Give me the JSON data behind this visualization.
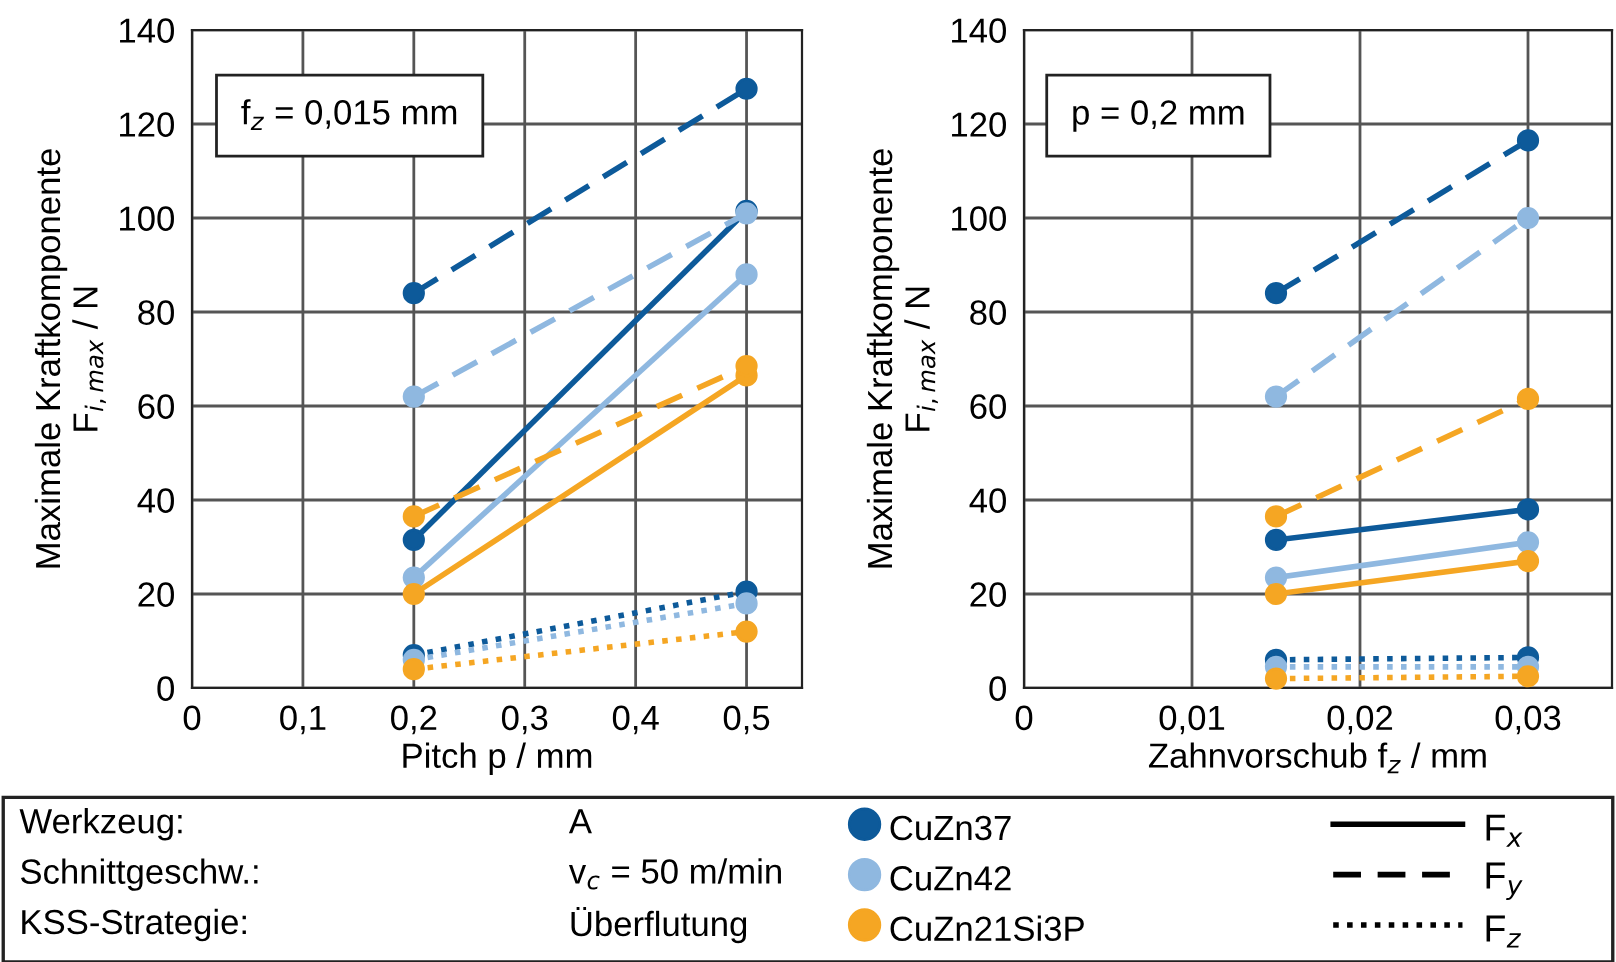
{
  "chart_data": [
    {
      "type": "line",
      "xlabel": "Pitch p / mm",
      "ylabel": "Maximale Kraftkomponente\nF$_{i,max}$ / N",
      "annotations": [
        "f$_{z}$ = 0,015 mm"
      ],
      "xlim": [
        0,
        0.55
      ],
      "ylim": [
        0,
        140
      ],
      "xticks": [
        0,
        {
          "value": 0.1,
          "label": "0,1"
        },
        {
          "value": 0.2,
          "label": "0,2"
        },
        {
          "value": 0.3,
          "label": "0,3"
        },
        {
          "value": 0.4,
          "label": "0,4"
        },
        {
          "value": 0.5,
          "label": "0,5"
        }
      ],
      "yticks": [
        0,
        20,
        40,
        60,
        80,
        100,
        120,
        140
      ],
      "grid": true,
      "marker": "circle",
      "x": [
        0.2,
        0.5
      ],
      "series": [
        {
          "color": "#0d5a9a",
          "line_style": "solid",
          "values": [
            31.5,
            101.5
          ]
        },
        {
          "color": "#0d5a9a",
          "line_style": "dashed",
          "values": [
            84,
            127.5
          ]
        },
        {
          "color": "#0d5a9a",
          "line_style": "dotted",
          "values": [
            7,
            20.5
          ]
        },
        {
          "color": "#8fb8e0",
          "line_style": "solid",
          "values": [
            23.5,
            88
          ]
        },
        {
          "color": "#8fb8e0",
          "line_style": "dashed",
          "values": [
            62,
            101
          ]
        },
        {
          "color": "#8fb8e0",
          "line_style": "dotted",
          "values": [
            6,
            18
          ]
        },
        {
          "color": "#f5a623",
          "line_style": "solid",
          "values": [
            20,
            66.5
          ]
        },
        {
          "color": "#f5a623",
          "line_style": "dashed",
          "values": [
            36.5,
            68.5
          ]
        },
        {
          "color": "#f5a623",
          "line_style": "dotted",
          "values": [
            4,
            12
          ]
        }
      ]
    },
    {
      "type": "line",
      "xlabel": "Zahnvorschub f$_{z}$ / mm",
      "ylabel": "Maximale Kraftkomponente\nF$_{i,max}$ / N",
      "annotations": [
        "p = 0,2 mm"
      ],
      "xlim": [
        0,
        0.035
      ],
      "ylim": [
        0,
        140
      ],
      "xticks": [
        0,
        {
          "value": 0.01,
          "label": "0,01"
        },
        {
          "value": 0.02,
          "label": "0,02"
        },
        {
          "value": 0.03,
          "label": "0,03"
        }
      ],
      "yticks": [
        0,
        20,
        40,
        60,
        80,
        100,
        120,
        140
      ],
      "grid": true,
      "marker": "circle",
      "x": [
        0.015,
        0.03
      ],
      "series": [
        {
          "color": "#0d5a9a",
          "line_style": "solid",
          "values": [
            31.5,
            38
          ]
        },
        {
          "color": "#0d5a9a",
          "line_style": "dashed",
          "values": [
            84,
            116.5
          ]
        },
        {
          "color": "#0d5a9a",
          "line_style": "dotted",
          "values": [
            6,
            6.5
          ]
        },
        {
          "color": "#8fb8e0",
          "line_style": "solid",
          "values": [
            23.5,
            31
          ]
        },
        {
          "color": "#8fb8e0",
          "line_style": "dashed",
          "values": [
            62,
            100
          ]
        },
        {
          "color": "#8fb8e0",
          "line_style": "dotted",
          "values": [
            4.5,
            4.5
          ]
        },
        {
          "color": "#f5a623",
          "line_style": "solid",
          "values": [
            20,
            27
          ]
        },
        {
          "color": "#f5a623",
          "line_style": "dashed",
          "values": [
            36.5,
            61.5
          ]
        },
        {
          "color": "#f5a623",
          "line_style": "dotted",
          "values": [
            2,
            2.5
          ]
        }
      ]
    },
    {
      "type": "other",
      "annotations": [
        "Werkzeug:",
        "A",
        "Schnittgeschw.:",
        "v$_{c}$ = 50 m/min",
        "KSS-Strategie:",
        "Überflutung"
      ],
      "series": [
        {
          "name": "CuZn37",
          "color": "#0d5a9a",
          "marker": "circle"
        },
        {
          "name": "CuZn42",
          "color": "#8fb8e0",
          "marker": "circle"
        },
        {
          "name": "CuZn21Si3P",
          "color": "#f5a623",
          "marker": "circle"
        },
        {
          "name": "F$_{x}$",
          "color": "#000000",
          "line_style": "solid"
        },
        {
          "name": "F$_{y}$",
          "color": "#000000",
          "line_style": "dashed"
        },
        {
          "name": "F$_{z}$",
          "color": "#000000",
          "line_style": "dotted"
        }
      ]
    }
  ]
}
